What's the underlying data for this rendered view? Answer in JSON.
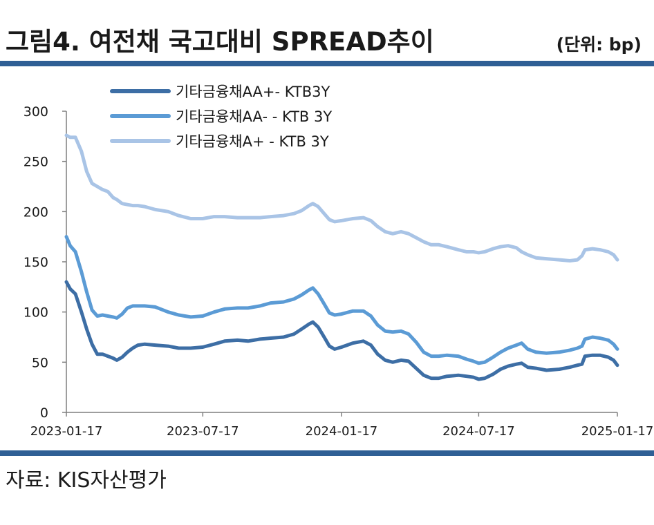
{
  "header": {
    "title": "그림4. 여전채 국고대비 SPREAD추이",
    "unit": "(단위: bp)"
  },
  "footer": {
    "source": "자료: KIS자산평가"
  },
  "colors": {
    "rule": "#2f5f95",
    "series": [
      "#3d6ea5",
      "#5b9bd5",
      "#a9c4e6"
    ]
  },
  "chart_data": {
    "type": "line",
    "ylim": [
      0,
      300
    ],
    "yticks": [
      0,
      50,
      100,
      150,
      200,
      250,
      300
    ],
    "xticks": [
      "2023-01-17",
      "2023-07-17",
      "2024-01-17",
      "2024-07-17",
      "2025-01-17"
    ],
    "xlim": [
      "2023-01-17",
      "2025-01-17"
    ],
    "legend_position": "top-left",
    "grid": false,
    "series": [
      {
        "name": "기타금융채AA+- KTB3Y",
        "points": [
          [
            "2023-01-17",
            130
          ],
          [
            "2023-01-22",
            123
          ],
          [
            "2023-01-29",
            118
          ],
          [
            "2023-02-06",
            100
          ],
          [
            "2023-02-13",
            83
          ],
          [
            "2023-02-20",
            68
          ],
          [
            "2023-02-27",
            58
          ],
          [
            "2023-03-06",
            58
          ],
          [
            "2023-03-13",
            56
          ],
          [
            "2023-03-20",
            54
          ],
          [
            "2023-03-25",
            52
          ],
          [
            "2023-04-01",
            55
          ],
          [
            "2023-04-08",
            60
          ],
          [
            "2023-04-15",
            64
          ],
          [
            "2023-04-22",
            67
          ],
          [
            "2023-05-01",
            68
          ],
          [
            "2023-05-15",
            67
          ],
          [
            "2023-06-01",
            66
          ],
          [
            "2023-06-15",
            64
          ],
          [
            "2023-07-01",
            64
          ],
          [
            "2023-07-17",
            65
          ],
          [
            "2023-08-01",
            68
          ],
          [
            "2023-08-15",
            71
          ],
          [
            "2023-09-01",
            72
          ],
          [
            "2023-09-15",
            71
          ],
          [
            "2023-10-01",
            73
          ],
          [
            "2023-10-15",
            74
          ],
          [
            "2023-11-01",
            75
          ],
          [
            "2023-11-15",
            78
          ],
          [
            "2023-11-25",
            83
          ],
          [
            "2023-12-05",
            88
          ],
          [
            "2023-12-10",
            90
          ],
          [
            "2023-12-17",
            85
          ],
          [
            "2023-12-25",
            75
          ],
          [
            "2024-01-01",
            66
          ],
          [
            "2024-01-08",
            63
          ],
          [
            "2024-01-17",
            65
          ],
          [
            "2024-02-01",
            69
          ],
          [
            "2024-02-15",
            71
          ],
          [
            "2024-02-25",
            67
          ],
          [
            "2024-03-05",
            58
          ],
          [
            "2024-03-15",
            52
          ],
          [
            "2024-03-25",
            50
          ],
          [
            "2024-04-05",
            52
          ],
          [
            "2024-04-15",
            51
          ],
          [
            "2024-04-25",
            44
          ],
          [
            "2024-05-05",
            37
          ],
          [
            "2024-05-15",
            34
          ],
          [
            "2024-05-25",
            34
          ],
          [
            "2024-06-05",
            36
          ],
          [
            "2024-06-20",
            37
          ],
          [
            "2024-07-01",
            36
          ],
          [
            "2024-07-10",
            35
          ],
          [
            "2024-07-17",
            33
          ],
          [
            "2024-07-25",
            34
          ],
          [
            "2024-08-05",
            38
          ],
          [
            "2024-08-15",
            43
          ],
          [
            "2024-08-25",
            46
          ],
          [
            "2024-09-05",
            48
          ],
          [
            "2024-09-12",
            49
          ],
          [
            "2024-09-20",
            45
          ],
          [
            "2024-10-01",
            44
          ],
          [
            "2024-10-15",
            42
          ],
          [
            "2024-11-01",
            43
          ],
          [
            "2024-11-15",
            45
          ],
          [
            "2024-11-25",
            47
          ],
          [
            "2024-12-01",
            48
          ],
          [
            "2024-12-05",
            56
          ],
          [
            "2024-12-15",
            57
          ],
          [
            "2024-12-25",
            57
          ],
          [
            "2025-01-05",
            55
          ],
          [
            "2025-01-12",
            52
          ],
          [
            "2025-01-17",
            47
          ]
        ]
      },
      {
        "name": "기타금융채AA- - KTB 3Y",
        "points": [
          [
            "2023-01-17",
            175
          ],
          [
            "2023-01-22",
            166
          ],
          [
            "2023-01-29",
            160
          ],
          [
            "2023-02-06",
            140
          ],
          [
            "2023-02-13",
            120
          ],
          [
            "2023-02-20",
            102
          ],
          [
            "2023-02-27",
            96
          ],
          [
            "2023-03-06",
            97
          ],
          [
            "2023-03-13",
            96
          ],
          [
            "2023-03-20",
            95
          ],
          [
            "2023-03-25",
            94
          ],
          [
            "2023-04-01",
            98
          ],
          [
            "2023-04-08",
            104
          ],
          [
            "2023-04-15",
            106
          ],
          [
            "2023-04-22",
            106
          ],
          [
            "2023-05-01",
            106
          ],
          [
            "2023-05-15",
            105
          ],
          [
            "2023-06-01",
            100
          ],
          [
            "2023-06-15",
            97
          ],
          [
            "2023-07-01",
            95
          ],
          [
            "2023-07-17",
            96
          ],
          [
            "2023-08-01",
            100
          ],
          [
            "2023-08-15",
            103
          ],
          [
            "2023-09-01",
            104
          ],
          [
            "2023-09-15",
            104
          ],
          [
            "2023-10-01",
            106
          ],
          [
            "2023-10-15",
            109
          ],
          [
            "2023-11-01",
            110
          ],
          [
            "2023-11-15",
            113
          ],
          [
            "2023-11-25",
            117
          ],
          [
            "2023-12-05",
            122
          ],
          [
            "2023-12-10",
            124
          ],
          [
            "2023-12-17",
            118
          ],
          [
            "2023-12-25",
            108
          ],
          [
            "2024-01-01",
            99
          ],
          [
            "2024-01-08",
            97
          ],
          [
            "2024-01-17",
            98
          ],
          [
            "2024-02-01",
            101
          ],
          [
            "2024-02-15",
            101
          ],
          [
            "2024-02-25",
            96
          ],
          [
            "2024-03-05",
            87
          ],
          [
            "2024-03-15",
            81
          ],
          [
            "2024-03-25",
            80
          ],
          [
            "2024-04-05",
            81
          ],
          [
            "2024-04-15",
            78
          ],
          [
            "2024-04-25",
            70
          ],
          [
            "2024-05-05",
            60
          ],
          [
            "2024-05-15",
            56
          ],
          [
            "2024-05-25",
            56
          ],
          [
            "2024-06-05",
            57
          ],
          [
            "2024-06-20",
            56
          ],
          [
            "2024-07-01",
            53
          ],
          [
            "2024-07-10",
            51
          ],
          [
            "2024-07-17",
            49
          ],
          [
            "2024-07-25",
            50
          ],
          [
            "2024-08-05",
            55
          ],
          [
            "2024-08-15",
            60
          ],
          [
            "2024-08-25",
            64
          ],
          [
            "2024-09-05",
            67
          ],
          [
            "2024-09-12",
            69
          ],
          [
            "2024-09-20",
            63
          ],
          [
            "2024-10-01",
            60
          ],
          [
            "2024-10-15",
            59
          ],
          [
            "2024-11-01",
            60
          ],
          [
            "2024-11-15",
            62
          ],
          [
            "2024-11-25",
            64
          ],
          [
            "2024-12-01",
            66
          ],
          [
            "2024-12-05",
            73
          ],
          [
            "2024-12-15",
            75
          ],
          [
            "2024-12-25",
            74
          ],
          [
            "2025-01-05",
            72
          ],
          [
            "2025-01-12",
            68
          ],
          [
            "2025-01-17",
            63
          ]
        ]
      },
      {
        "name": "기타금융채A+ - KTB 3Y",
        "points": [
          [
            "2023-01-17",
            276
          ],
          [
            "2023-01-22",
            274
          ],
          [
            "2023-01-29",
            274
          ],
          [
            "2023-02-06",
            260
          ],
          [
            "2023-02-13",
            240
          ],
          [
            "2023-02-20",
            228
          ],
          [
            "2023-02-27",
            225
          ],
          [
            "2023-03-06",
            222
          ],
          [
            "2023-03-13",
            220
          ],
          [
            "2023-03-20",
            214
          ],
          [
            "2023-03-25",
            212
          ],
          [
            "2023-04-01",
            208
          ],
          [
            "2023-04-08",
            207
          ],
          [
            "2023-04-15",
            206
          ],
          [
            "2023-04-22",
            206
          ],
          [
            "2023-05-01",
            205
          ],
          [
            "2023-05-15",
            202
          ],
          [
            "2023-06-01",
            200
          ],
          [
            "2023-06-15",
            196
          ],
          [
            "2023-07-01",
            193
          ],
          [
            "2023-07-17",
            193
          ],
          [
            "2023-08-01",
            195
          ],
          [
            "2023-08-15",
            195
          ],
          [
            "2023-09-01",
            194
          ],
          [
            "2023-09-15",
            194
          ],
          [
            "2023-10-01",
            194
          ],
          [
            "2023-10-15",
            195
          ],
          [
            "2023-11-01",
            196
          ],
          [
            "2023-11-15",
            198
          ],
          [
            "2023-11-25",
            201
          ],
          [
            "2023-12-05",
            206
          ],
          [
            "2023-12-10",
            208
          ],
          [
            "2023-12-17",
            205
          ],
          [
            "2023-12-25",
            198
          ],
          [
            "2024-01-01",
            192
          ],
          [
            "2024-01-08",
            190
          ],
          [
            "2024-01-17",
            191
          ],
          [
            "2024-02-01",
            193
          ],
          [
            "2024-02-15",
            194
          ],
          [
            "2024-02-25",
            191
          ],
          [
            "2024-03-05",
            185
          ],
          [
            "2024-03-15",
            180
          ],
          [
            "2024-03-25",
            178
          ],
          [
            "2024-04-05",
            180
          ],
          [
            "2024-04-15",
            178
          ],
          [
            "2024-04-25",
            174
          ],
          [
            "2024-05-05",
            170
          ],
          [
            "2024-05-15",
            167
          ],
          [
            "2024-05-25",
            167
          ],
          [
            "2024-06-05",
            165
          ],
          [
            "2024-06-20",
            162
          ],
          [
            "2024-07-01",
            160
          ],
          [
            "2024-07-10",
            160
          ],
          [
            "2024-07-17",
            159
          ],
          [
            "2024-07-25",
            160
          ],
          [
            "2024-08-05",
            163
          ],
          [
            "2024-08-15",
            165
          ],
          [
            "2024-08-25",
            166
          ],
          [
            "2024-09-05",
            164
          ],
          [
            "2024-09-12",
            160
          ],
          [
            "2024-09-20",
            157
          ],
          [
            "2024-10-01",
            154
          ],
          [
            "2024-10-15",
            153
          ],
          [
            "2024-11-01",
            152
          ],
          [
            "2024-11-15",
            151
          ],
          [
            "2024-11-25",
            152
          ],
          [
            "2024-12-01",
            156
          ],
          [
            "2024-12-05",
            162
          ],
          [
            "2024-12-15",
            163
          ],
          [
            "2024-12-25",
            162
          ],
          [
            "2025-01-05",
            160
          ],
          [
            "2025-01-12",
            157
          ],
          [
            "2025-01-17",
            152
          ]
        ]
      }
    ]
  }
}
